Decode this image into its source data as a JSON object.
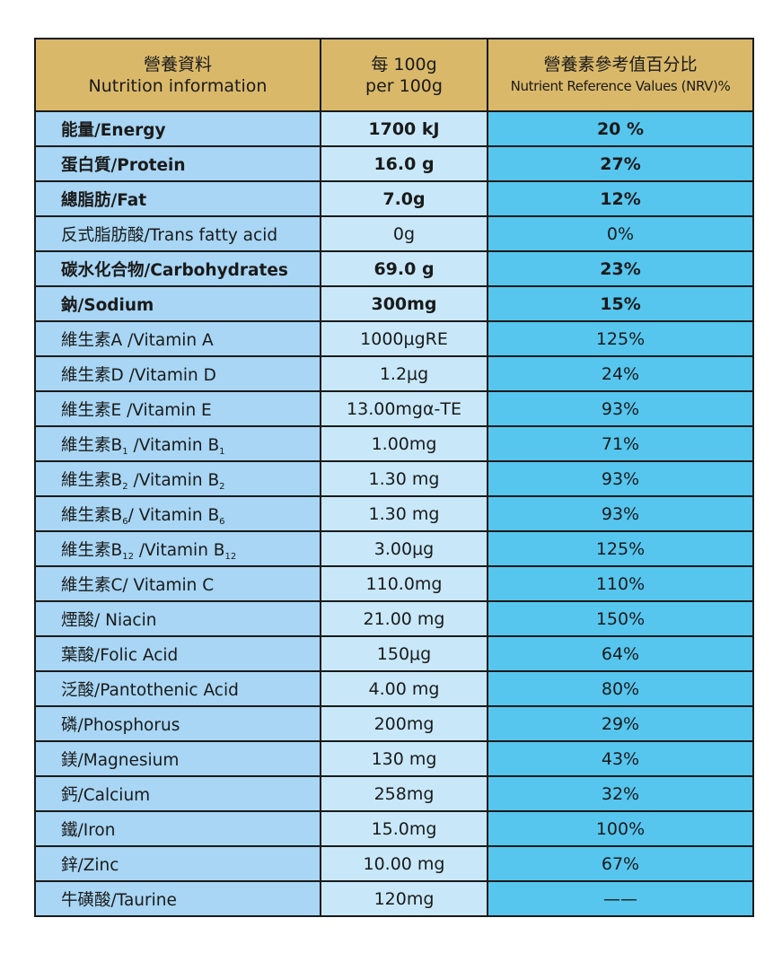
{
  "header": {
    "col1_zh": "營養資料",
    "col1_en": "Nutrition information",
    "col2_zh": "每 100g",
    "col2_en": "per 100g",
    "col3_zh": "營養素參考值百分比",
    "col3_en": "Nutrient Reference Values (NRV)%"
  },
  "rows": [
    {
      "name": "能量/Energy",
      "amount": "1700 kJ",
      "nrv": "20 %",
      "bold": true
    },
    {
      "name": "蛋白質/Protein",
      "amount": "16.0 g",
      "nrv": "27%",
      "bold": true
    },
    {
      "name": "總脂肪/Fat",
      "amount": "7.0g",
      "nrv": "12%",
      "bold": true
    },
    {
      "name": "反式脂肪酸/Trans fatty acid",
      "amount": "0g",
      "nrv": "0%",
      "bold": false
    },
    {
      "name": "碳水化合物/Carbohydrates",
      "amount": "69.0 g",
      "nrv": "23%",
      "bold": true
    },
    {
      "name": "鈉/Sodium",
      "amount": "300mg",
      "nrv": "15%",
      "bold": true
    },
    {
      "name": "維生素A /Vitamin A",
      "amount": "1000μgRE",
      "nrv": "125%",
      "bold": false
    },
    {
      "name": "維生素D /Vitamin D",
      "amount": "1.2μg",
      "nrv": "24%",
      "bold": false
    },
    {
      "name": "維生素E /Vitamin E",
      "amount": "13.00mgα-TE",
      "nrv": "93%",
      "bold": false
    },
    {
      "name_a": "維生素B",
      "name_sub1": "1",
      "name_b": " /Vitamin B",
      "name_sub2": "1",
      "amount": "1.00mg",
      "nrv": "71%",
      "bold": false
    },
    {
      "name_a": "維生素B",
      "name_sub1": "2",
      "name_b": " /Vitamin B",
      "name_sub2": "2",
      "amount": "1.30 mg",
      "nrv": "93%",
      "bold": false
    },
    {
      "name_a": "維生素B",
      "name_sub1": "6",
      "name_b": "/ Vitamin B",
      "name_sub2": "6",
      "amount": "1.30 mg",
      "nrv": "93%",
      "bold": false
    },
    {
      "name_a": "維生素B",
      "name_sub1": "12",
      "name_b": " /Vitamin B",
      "name_sub2": "12",
      "amount": "3.00μg",
      "nrv": "125%",
      "bold": false
    },
    {
      "name": "維生素C/ Vitamin C",
      "amount": "110.0mg",
      "nrv": "110%",
      "bold": false
    },
    {
      "name": "煙酸/ Niacin",
      "amount": "21.00 mg",
      "nrv": "150%",
      "bold": false
    },
    {
      "name": "葉酸/Folic Acid",
      "amount": "150μg",
      "nrv": "64%",
      "bold": false
    },
    {
      "name": "泛酸/Pantothenic Acid",
      "amount": "4.00 mg",
      "nrv": "80%",
      "bold": false
    },
    {
      "name": "磷/Phosphorus",
      "amount": "200mg",
      "nrv": "29%",
      "bold": false
    },
    {
      "name": "鎂/Magnesium",
      "amount": "130 mg",
      "nrv": "43%",
      "bold": false
    },
    {
      "name": "鈣/Calcium",
      "amount": "258mg",
      "nrv": "32%",
      "bold": false
    },
    {
      "name": "鐵/Iron",
      "amount": "15.0mg",
      "nrv": "100%",
      "bold": false
    },
    {
      "name": "鋅/Zinc",
      "amount": "10.00 mg",
      "nrv": "67%",
      "bold": false
    },
    {
      "name": "牛磺酸/Taurine",
      "amount": "120mg",
      "nrv": "——",
      "bold": false
    }
  ],
  "colors": {
    "header_bg": "#d9b86a",
    "name_col_bg": "#a8d6f4",
    "amount_col_bg": "#c8e8fa",
    "nrv_col_bg": "#56c6ef",
    "border": "#1a1a1a"
  }
}
